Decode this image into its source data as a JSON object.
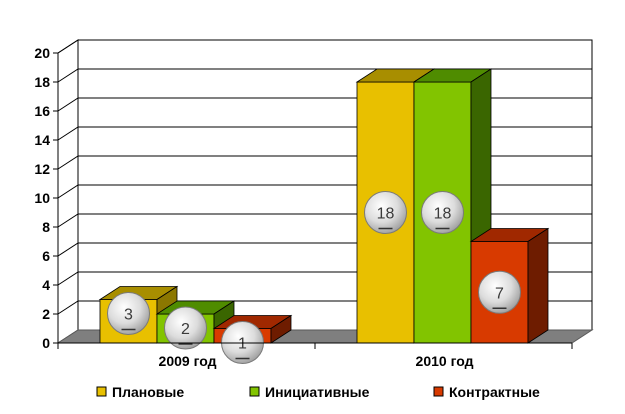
{
  "chart_data": {
    "type": "bar",
    "categories": [
      "2009 год",
      "2010 год"
    ],
    "series": [
      {
        "name": "Плановые",
        "values": [
          3,
          18
        ],
        "color": "#e8c000",
        "top": "#a88e00",
        "side": "#8c7700"
      },
      {
        "name": "Инициативные",
        "values": [
          2,
          18
        ],
        "color": "#82c400",
        "top": "#4f8c00",
        "side": "#3a6600"
      },
      {
        "name": "Контрактные",
        "values": [
          1,
          7
        ],
        "color": "#d83a00",
        "top": "#a02800",
        "side": "#6e1c00"
      }
    ],
    "ylim": [
      0,
      20
    ],
    "yticks": [
      "0",
      "2",
      "4",
      "6",
      "8",
      "10",
      "12",
      "14",
      "16",
      "18",
      "20"
    ],
    "grid": true,
    "legend_position": "bottom",
    "data_labels": true,
    "title": "",
    "xlabel": "",
    "ylabel": ""
  }
}
